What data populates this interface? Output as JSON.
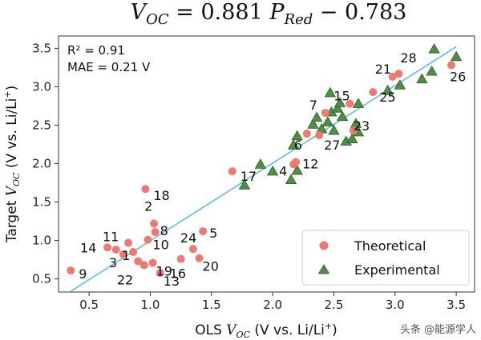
{
  "chart_data": {
    "type": "scatter",
    "title": "V_OC = 0.881 P_Red − 0.783",
    "xlabel": "OLS V_OC (V vs. Li/Li⁺)",
    "ylabel": "Target V_OC (V vs. Li/Li⁺)",
    "xlim": [
      0.25,
      3.65
    ],
    "ylim": [
      0.33,
      3.66
    ],
    "xticks": [
      "0.5",
      "1.0",
      "1.5",
      "2.0",
      "2.5",
      "3.0",
      "3.5"
    ],
    "yticks": [
      "0.5",
      "1.0",
      "1.5",
      "2.0",
      "2.5",
      "3.0",
      "3.5"
    ],
    "stats": [
      "R² = 0.91",
      "MAE = 0.21 V"
    ],
    "fit_line": {
      "x": [
        0.35,
        3.5
      ],
      "y": [
        0.34,
        3.52
      ]
    },
    "legend": {
      "position": "bottom-right",
      "entries": [
        "Theoretical",
        "Experimental"
      ]
    },
    "colors": {
      "theoretical": "#ec7a6f",
      "experimental": "#4f8e44",
      "fit": "#5ebfdc"
    },
    "series": [
      {
        "name": "Theoretical",
        "points": [
          {
            "x": 0.35,
            "y": 0.61,
            "label": "9"
          },
          {
            "x": 0.65,
            "y": 0.91,
            "label": "14"
          },
          {
            "x": 0.72,
            "y": 0.88
          },
          {
            "x": 0.78,
            "y": 0.82,
            "label": "3"
          },
          {
            "x": 0.82,
            "y": 0.97,
            "label": "11"
          },
          {
            "x": 0.86,
            "y": 0.85,
            "label": "1"
          },
          {
            "x": 0.9,
            "y": 0.73
          },
          {
            "x": 0.95,
            "y": 0.68,
            "label": "22"
          },
          {
            "x": 0.98,
            "y": 1.01,
            "label": "10"
          },
          {
            "x": 1.02,
            "y": 0.71,
            "label": "19"
          },
          {
            "x": 1.03,
            "y": 1.22,
            "label": "2"
          },
          {
            "x": 1.04,
            "y": 1.11,
            "label": "8"
          },
          {
            "x": 0.96,
            "y": 1.67,
            "label": "18"
          },
          {
            "x": 1.08,
            "y": 0.58,
            "label": "13"
          },
          {
            "x": 1.25,
            "y": 0.76,
            "label": "16"
          },
          {
            "x": 1.35,
            "y": 0.89,
            "label": "24"
          },
          {
            "x": 1.4,
            "y": 0.77,
            "label": "20"
          },
          {
            "x": 1.43,
            "y": 1.12,
            "label": "5"
          },
          {
            "x": 1.67,
            "y": 1.9,
            "label": "17"
          },
          {
            "x": 2.17,
            "y": 1.99,
            "label": "4"
          },
          {
            "x": 2.19,
            "y": 2.02,
            "label": "12"
          },
          {
            "x": 2.28,
            "y": 2.39,
            "label": "6"
          },
          {
            "x": 2.38,
            "y": 2.37,
            "label": "27"
          },
          {
            "x": 2.43,
            "y": 2.66,
            "label": "7"
          },
          {
            "x": 2.63,
            "y": 2.78,
            "label": "15"
          },
          {
            "x": 2.66,
            "y": 2.43,
            "label": "23"
          },
          {
            "x": 2.82,
            "y": 2.93,
            "label": "25"
          },
          {
            "x": 2.98,
            "y": 3.13,
            "label": "21"
          },
          {
            "x": 3.03,
            "y": 3.17,
            "label": "28"
          },
          {
            "x": 3.46,
            "y": 3.28,
            "label": "26"
          }
        ]
      },
      {
        "name": "Experimental",
        "points": [
          {
            "x": 1.77,
            "y": 1.72
          },
          {
            "x": 1.9,
            "y": 1.99
          },
          {
            "x": 2.0,
            "y": 1.9
          },
          {
            "x": 2.15,
            "y": 1.79
          },
          {
            "x": 2.2,
            "y": 1.91
          },
          {
            "x": 2.17,
            "y": 2.24
          },
          {
            "x": 2.2,
            "y": 2.36
          },
          {
            "x": 2.33,
            "y": 2.51
          },
          {
            "x": 2.36,
            "y": 2.6
          },
          {
            "x": 2.4,
            "y": 2.45
          },
          {
            "x": 2.45,
            "y": 2.54
          },
          {
            "x": 2.48,
            "y": 2.67
          },
          {
            "x": 2.53,
            "y": 2.72
          },
          {
            "x": 2.57,
            "y": 2.61
          },
          {
            "x": 2.6,
            "y": 2.29
          },
          {
            "x": 2.65,
            "y": 2.32
          },
          {
            "x": 2.68,
            "y": 2.52
          },
          {
            "x": 2.7,
            "y": 2.41
          },
          {
            "x": 2.7,
            "y": 2.78
          },
          {
            "x": 2.55,
            "y": 2.79
          },
          {
            "x": 2.47,
            "y": 2.92
          },
          {
            "x": 2.94,
            "y": 2.95
          },
          {
            "x": 3.04,
            "y": 3.02
          },
          {
            "x": 3.22,
            "y": 3.1
          },
          {
            "x": 3.3,
            "y": 3.2
          },
          {
            "x": 3.32,
            "y": 3.49
          },
          {
            "x": 3.5,
            "y": 3.39
          },
          {
            "x": 2.5,
            "y": 2.43
          }
        ]
      }
    ]
  },
  "watermark": "头条 @能源学人"
}
